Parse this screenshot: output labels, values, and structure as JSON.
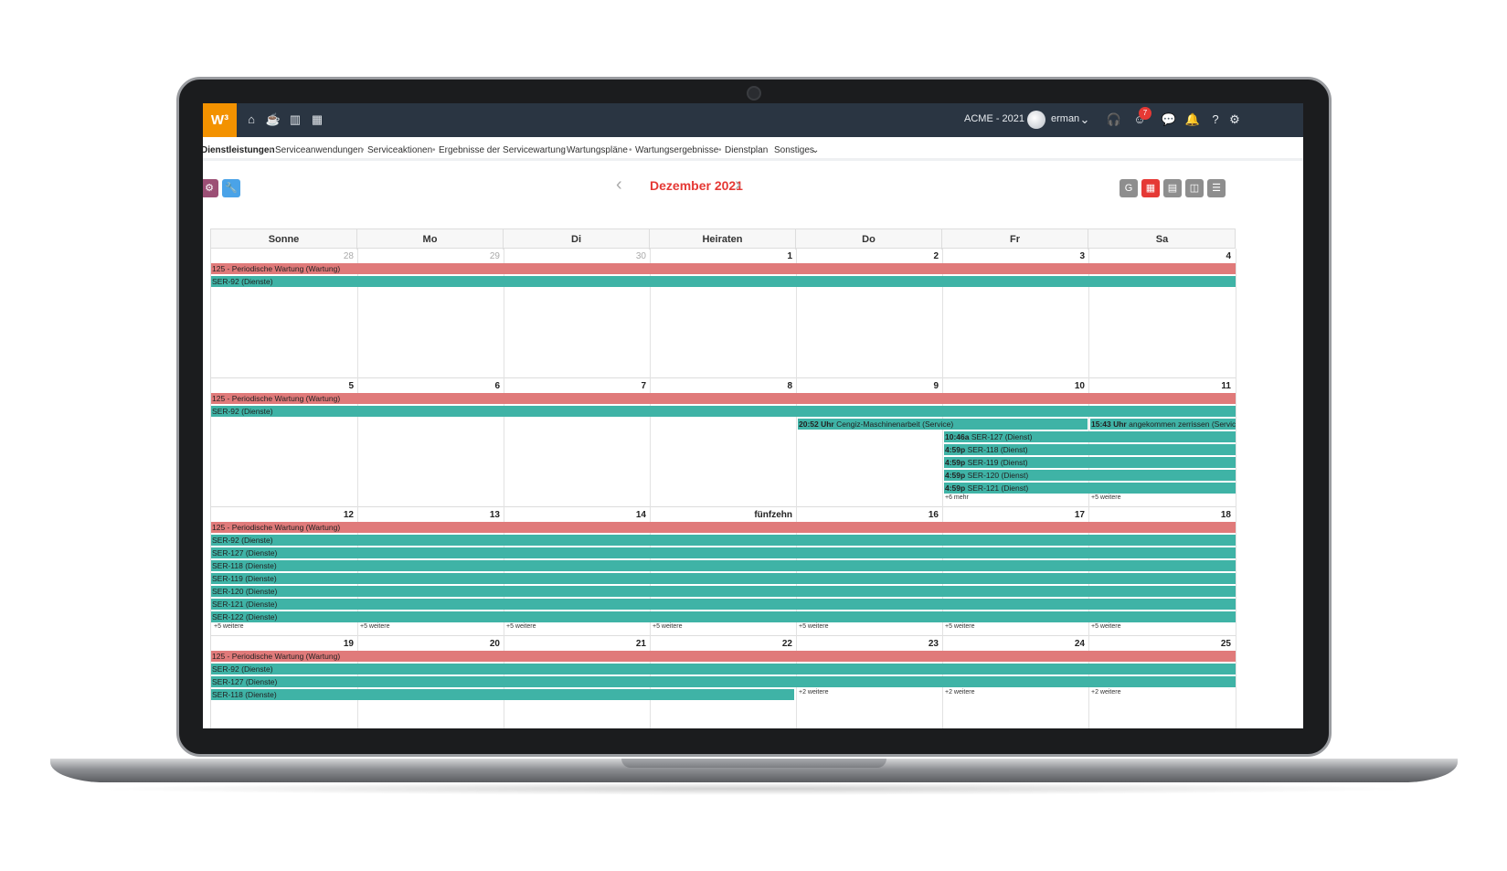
{
  "topbar": {
    "logo": "W³",
    "company": "ACME - 2021",
    "user": "erman",
    "notification_count": "7"
  },
  "subnav": {
    "items": [
      "Dienstleistungen",
      "Serviceanwendungen",
      "Serviceaktionen",
      "Ergebnisse der Servicewartung",
      "Wartungspläne",
      "Wartungsergebnisse",
      "Dienstplan",
      "Sonstiges"
    ]
  },
  "calendar": {
    "month_title": "Dezember 2021",
    "weekdays": [
      "Sonne",
      "Mo",
      "Di",
      "Heiraten",
      "Do",
      "Fr",
      "Sa"
    ],
    "weeks": [
      {
        "days": [
          "28",
          "29",
          "30",
          "1",
          "2",
          "3",
          "4"
        ]
      },
      {
        "days": [
          "5",
          "6",
          "7",
          "8",
          "9",
          "10",
          "11"
        ]
      },
      {
        "days": [
          "12",
          "13",
          "14",
          "fünfzehn",
          "16",
          "17",
          "18"
        ]
      },
      {
        "days": [
          "19",
          "20",
          "21",
          "22",
          "23",
          "24",
          "25"
        ]
      }
    ],
    "events": {
      "periodic": "125 - Periodische Wartung (Wartung)",
      "ser92": "SER-92 (Dienste)",
      "ser127": "SER-127 (Dienste)",
      "ser118": "SER-118 (Dienste)",
      "ser119": "SER-119 (Dienste)",
      "ser120": "SER-120 (Dienste)",
      "ser121": "SER-121 (Dienste)",
      "ser122": "SER-122 (Dienste)",
      "ser118_cut": "SER-118 (Dienste)",
      "w2_thu_time": "20:52 Uhr",
      "w2_thu_text": "Cengiz-Maschinenarbeit (Service)",
      "w2_sat_time": "15:43 Uhr",
      "w2_sat_text": "angekommen zerrissen (Service)",
      "w2_fri": [
        {
          "time": "10:46a",
          "text": "SER-127 (Dienst)"
        },
        {
          "time": "4:59p",
          "text": "SER-118 (Dienst)"
        },
        {
          "time": "4:59p",
          "text": "SER-119 (Dienst)"
        },
        {
          "time": "4:59p",
          "text": "SER-120 (Dienst)"
        },
        {
          "time": "4:59p",
          "text": "SER-121 (Dienst)"
        }
      ],
      "more_6": "+6 mehr",
      "more_5": "+5 weitere",
      "more_2": "+2 weitere"
    }
  },
  "colors": {
    "accent": "#e53935",
    "logo": "#f39200",
    "event_red": "#e07a7a",
    "event_teal": "#3fb3a6",
    "topbar": "#2a3542"
  }
}
